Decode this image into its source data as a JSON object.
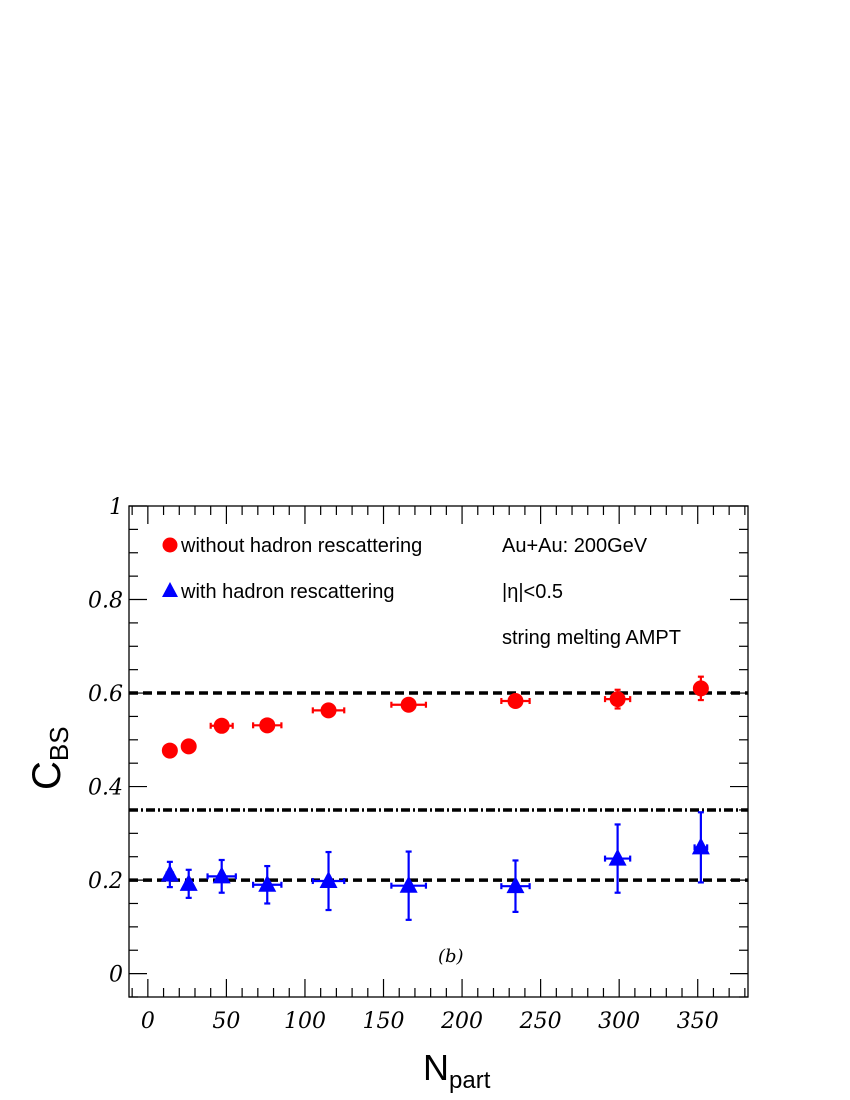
{
  "chart_data": {
    "type": "scatter",
    "title": "",
    "xlabel": {
      "main": "N",
      "sub": "part"
    },
    "ylabel": {
      "main": "C",
      "sub": "BS"
    },
    "xlim": [
      -12,
      382
    ],
    "ylim": [
      -0.05,
      1.0
    ],
    "x_major_ticks": [
      0,
      50,
      100,
      150,
      200,
      250,
      300,
      350
    ],
    "x_tick_labels": [
      "0",
      "50",
      "100",
      "150",
      "200",
      "250",
      "300",
      "350"
    ],
    "y_major_ticks": [
      0,
      0.2,
      0.4,
      0.6,
      0.8,
      1
    ],
    "y_tick_labels": [
      "0",
      "0.2",
      "0.4",
      "0.6",
      "0.8",
      "1"
    ],
    "legend_position": "top-left",
    "series": [
      {
        "name": "without hadron rescattering",
        "marker": "circle",
        "color": "#ff0000",
        "points": [
          {
            "x": 14,
            "y": 0.477,
            "xerr": 1,
            "yerr": 0.006
          },
          {
            "x": 26,
            "y": 0.486,
            "xerr": 1,
            "yerr": 0.006
          },
          {
            "x": 47,
            "y": 0.53,
            "xerr": 7,
            "yerr": 0.007
          },
          {
            "x": 76,
            "y": 0.531,
            "xerr": 9,
            "yerr": 0.007
          },
          {
            "x": 115,
            "y": 0.563,
            "xerr": 10,
            "yerr": 0.008
          },
          {
            "x": 166,
            "y": 0.575,
            "xerr": 11,
            "yerr": 0.009
          },
          {
            "x": 234,
            "y": 0.583,
            "xerr": 9,
            "yerr": 0.01
          },
          {
            "x": 299,
            "y": 0.587,
            "xerr": 8,
            "yerr": 0.02
          },
          {
            "x": 352,
            "y": 0.61,
            "xerr": 4,
            "yerr": 0.025
          }
        ]
      },
      {
        "name": "with hadron rescattering",
        "marker": "triangle",
        "color": "#0000ff",
        "points": [
          {
            "x": 14,
            "y": 0.212,
            "xerr": 2,
            "yerr": 0.027
          },
          {
            "x": 26,
            "y": 0.192,
            "xerr": 2,
            "yerr": 0.03
          },
          {
            "x": 47,
            "y": 0.208,
            "xerr": 9,
            "yerr": 0.035
          },
          {
            "x": 76,
            "y": 0.19,
            "xerr": 9,
            "yerr": 0.04
          },
          {
            "x": 115,
            "y": 0.198,
            "xerr": 10,
            "yerr": 0.062
          },
          {
            "x": 166,
            "y": 0.188,
            "xerr": 11,
            "yerr": 0.073
          },
          {
            "x": 234,
            "y": 0.187,
            "xerr": 9,
            "yerr": 0.055
          },
          {
            "x": 299,
            "y": 0.246,
            "xerr": 8,
            "yerr": 0.073
          },
          {
            "x": 352,
            "y": 0.27,
            "xerr": 4,
            "yerr": 0.075
          }
        ]
      }
    ],
    "reference_lines": [
      {
        "y": 0.6,
        "style": "dashed"
      },
      {
        "y": 0.35,
        "style": "dash-dot"
      },
      {
        "y": 0.2,
        "style": "dashed"
      }
    ],
    "annotations": [
      "Au+Au: 200GeV",
      "|η|<0.5",
      "string melting AMPT"
    ],
    "panel_label": "(b)"
  }
}
